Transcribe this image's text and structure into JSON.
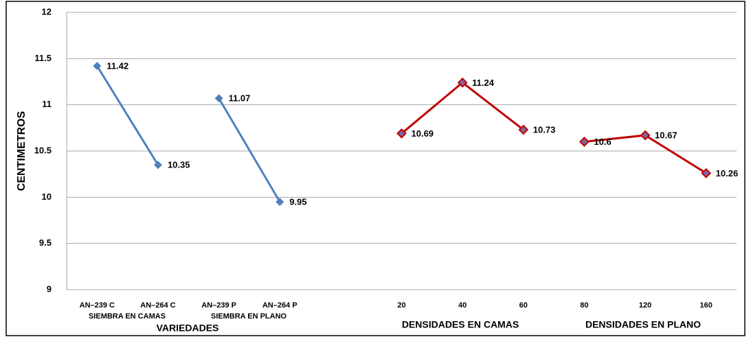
{
  "chart_data": {
    "type": "line",
    "y_label": "CENTIMETROS",
    "categories": [
      "AN–239 C",
      "AN–264 C",
      "AN–239 P",
      "AN–264 P",
      null,
      "20",
      "40",
      "60",
      "80",
      "120",
      "160"
    ],
    "series": [
      {
        "color": "#4f81bd",
        "values": [
          11.42,
          10.35,
          null,
          null,
          null,
          null,
          null,
          null,
          null,
          null,
          null
        ]
      },
      {
        "color": "#4f81bd",
        "values": [
          null,
          null,
          11.07,
          9.95,
          null,
          null,
          null,
          null,
          null,
          null,
          null
        ]
      },
      {
        "color": "#c00000",
        "marker_color": "#8064a2",
        "values": [
          null,
          null,
          null,
          null,
          null,
          10.69,
          11.24,
          10.73,
          null,
          null,
          null
        ]
      },
      {
        "color": "#c00000",
        "marker_color": "#8064a2",
        "values": [
          null,
          null,
          null,
          null,
          null,
          null,
          null,
          null,
          10.6,
          10.67,
          10.26
        ]
      }
    ],
    "annotations": [
      "SIEMBRA EN CAMAS",
      "SIEMBRA EN PLANO",
      "VARIEDADES",
      "DENSIDADES EN CAMAS",
      "DENSIDADES EN PLANO"
    ],
    "ylim": [
      9,
      12
    ],
    "yticks": [
      9,
      9.5,
      10,
      10.5,
      11,
      11.5,
      12
    ],
    "grid": true
  }
}
